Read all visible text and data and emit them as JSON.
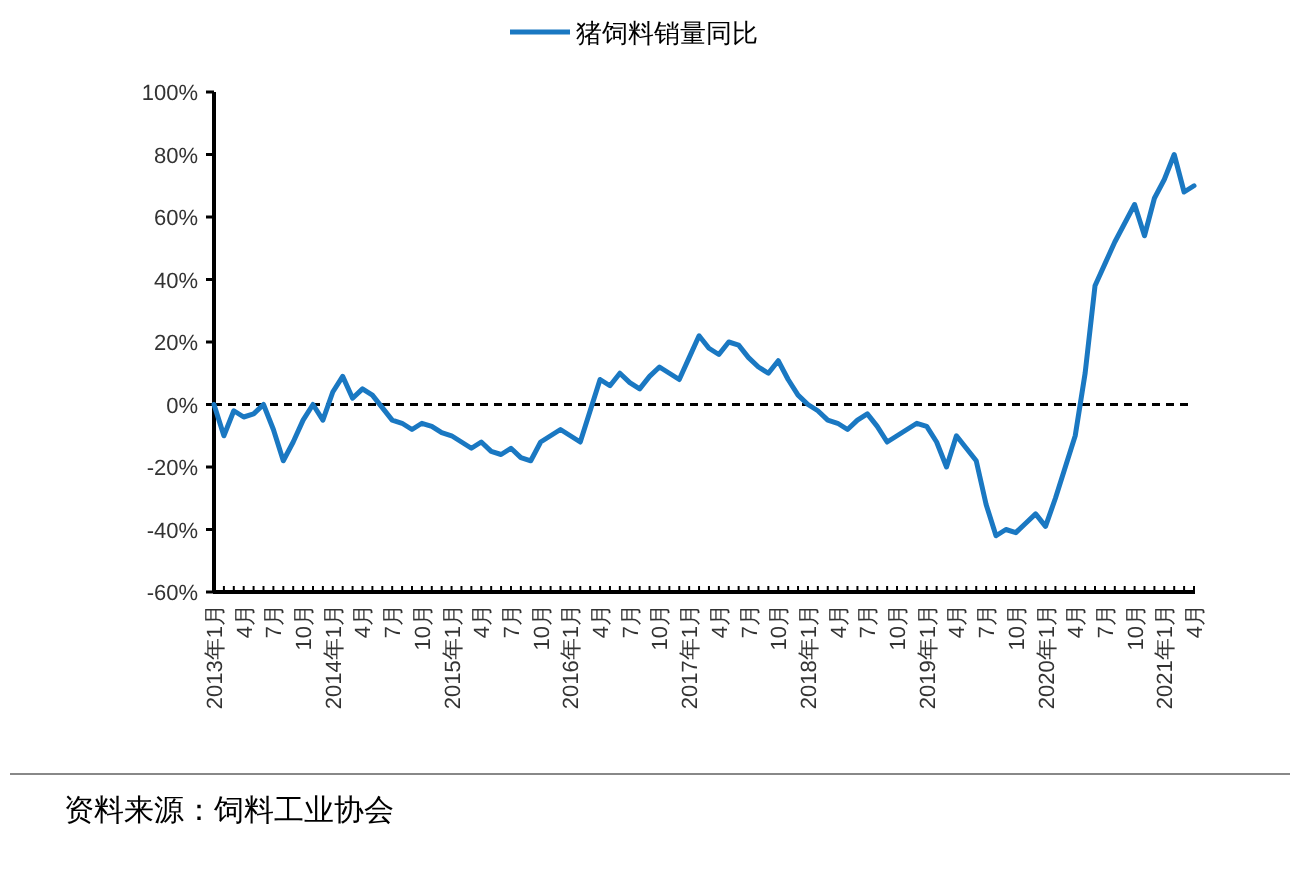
{
  "chart_data": {
    "type": "line",
    "categories": [
      "2013年1月",
      null,
      null,
      "4月",
      null,
      null,
      "7月",
      null,
      null,
      "10月",
      null,
      null,
      "2014年1月",
      null,
      null,
      "4月",
      null,
      null,
      "7月",
      null,
      null,
      "10月",
      null,
      null,
      "2015年1月",
      null,
      null,
      "4月",
      null,
      null,
      "7月",
      null,
      null,
      "10月",
      null,
      null,
      "2016年1月",
      null,
      null,
      "4月",
      null,
      null,
      "7月",
      null,
      null,
      "10月",
      null,
      null,
      "2017年1月",
      null,
      null,
      "4月",
      null,
      null,
      "7月",
      null,
      null,
      "10月",
      null,
      null,
      "2018年1月",
      null,
      null,
      "4月",
      null,
      null,
      "7月",
      null,
      null,
      "10月",
      null,
      null,
      "2019年1月",
      null,
      null,
      "4月",
      null,
      null,
      "7月",
      null,
      null,
      "10月",
      null,
      null,
      "2020年1月",
      null,
      null,
      "4月",
      null,
      null,
      "7月",
      null,
      null,
      "10月",
      null,
      null,
      "2021年1月",
      null,
      null,
      "4月"
    ],
    "series": [
      {
        "name": "猪饲料销量同比",
        "color": "#1a78c2",
        "values": [
          0,
          -10,
          -2,
          -4,
          -3,
          0,
          -8,
          -18,
          -12,
          -5,
          0,
          -5,
          4,
          9,
          2,
          5,
          3,
          -1,
          -5,
          -6,
          -8,
          -6,
          -7,
          -9,
          -10,
          -12,
          -14,
          -12,
          -15,
          -16,
          -14,
          -17,
          -18,
          -12,
          -10,
          -8,
          -10,
          -12,
          -2,
          8,
          6,
          10,
          7,
          5,
          9,
          12,
          10,
          8,
          15,
          22,
          18,
          16,
          20,
          19,
          15,
          12,
          10,
          14,
          8,
          3,
          0,
          -2,
          -5,
          -6,
          -8,
          -5,
          -3,
          -7,
          -12,
          -10,
          -8,
          -6,
          -7,
          -12,
          -20,
          -10,
          -14,
          -18,
          -32,
          -42,
          -40,
          -41,
          -38,
          -35,
          -39,
          -30,
          -20,
          -10,
          10,
          38,
          45,
          52,
          58,
          64,
          54,
          66,
          72,
          80,
          68,
          70
        ]
      }
    ],
    "ylim": [
      -60,
      100
    ],
    "yticks": [
      {
        "value": -60,
        "label": "-60%"
      },
      {
        "value": -40,
        "label": "-40%"
      },
      {
        "value": -20,
        "label": "-20%"
      },
      {
        "value": 0,
        "label": "0%"
      },
      {
        "value": 20,
        "label": "20%"
      },
      {
        "value": 40,
        "label": "40%"
      },
      {
        "value": 60,
        "label": "60%"
      },
      {
        "value": 80,
        "label": "80%"
      },
      {
        "value": 100,
        "label": "100%"
      }
    ],
    "ref_lines": [
      {
        "axis": "y",
        "value": 0,
        "color": "#000000",
        "line_style": "dashed"
      }
    ],
    "legend": "top",
    "marker": "none",
    "line_style": "solid",
    "annotations": [
      "资料来源：饲料工业协会"
    ]
  }
}
